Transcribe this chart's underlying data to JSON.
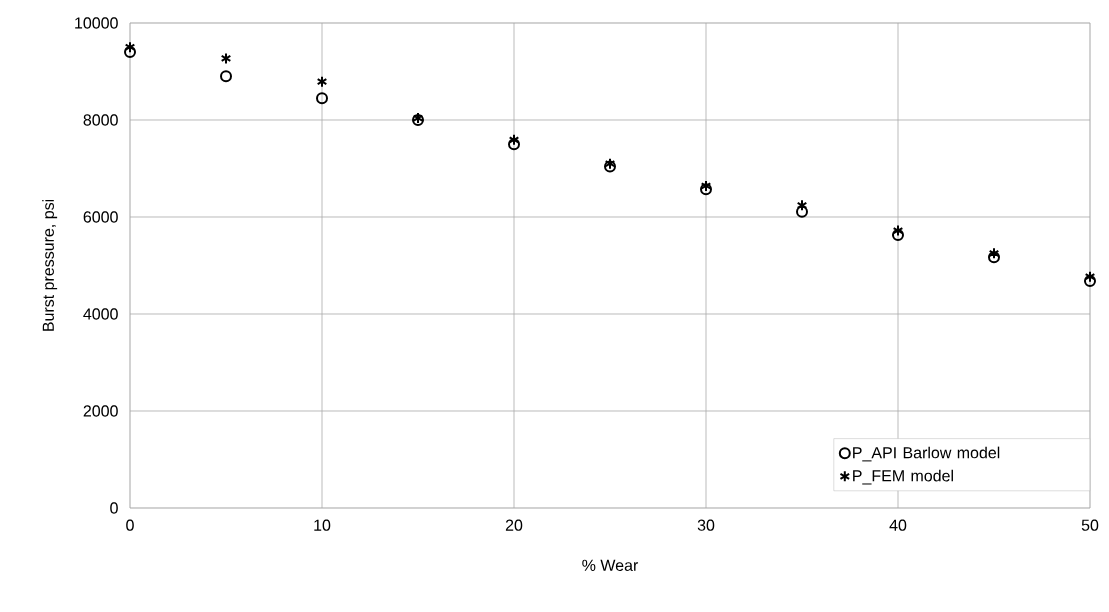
{
  "chart_data": {
    "type": "scatter",
    "xlabel": "% Wear",
    "ylabel": "Burst pressure, psi",
    "xlim": [
      0,
      50
    ],
    "xticks": [
      0,
      10,
      20,
      30,
      40,
      50
    ],
    "ylim": [
      0,
      10000
    ],
    "yticks": [
      0,
      2000,
      4000,
      6000,
      8000,
      10000
    ],
    "grid": true,
    "legend": "bottom right",
    "x": [
      0,
      5,
      10,
      15,
      20,
      25,
      30,
      35,
      40,
      45,
      50
    ],
    "series": [
      {
        "name": "P_API Barlow model",
        "color": "#000000",
        "marker": "circle",
        "values": [
          9400,
          8900,
          8450,
          8000,
          7500,
          7040,
          6570,
          6110,
          5630,
          5170,
          4680
        ]
      },
      {
        "name": "P_FEM model",
        "color": "#000000",
        "marker": "cross",
        "values": [
          9500,
          9270,
          8790,
          8040,
          7590,
          7100,
          6640,
          6240,
          5720,
          5250,
          4770
        ]
      }
    ]
  }
}
